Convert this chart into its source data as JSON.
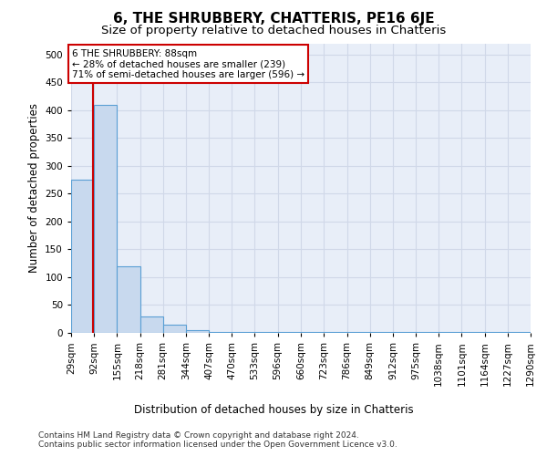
{
  "title": "6, THE SHRUBBERY, CHATTERIS, PE16 6JE",
  "subtitle": "Size of property relative to detached houses in Chatteris",
  "xlabel_bottom": "Distribution of detached houses by size in Chatteris",
  "ylabel": "Number of detached properties",
  "bin_edges": [
    29,
    92,
    155,
    218,
    281,
    344,
    407,
    470,
    533,
    596,
    660,
    723,
    786,
    849,
    912,
    975,
    1038,
    1101,
    1164,
    1227,
    1290
  ],
  "bar_heights": [
    275,
    410,
    120,
    30,
    15,
    5,
    2,
    2,
    1,
    1,
    1,
    1,
    1,
    1,
    1,
    1,
    1,
    1,
    1,
    1
  ],
  "bar_color": "#c8d9ee",
  "bar_edge_color": "#5a9fd4",
  "property_size": 88,
  "red_line_color": "#cc0000",
  "annotation_line1": "6 THE SHRUBBERY: 88sqm",
  "annotation_line2": "← 28% of detached houses are smaller (239)",
  "annotation_line3": "71% of semi-detached houses are larger (596) →",
  "annotation_box_color": "#ffffff",
  "annotation_border_color": "#cc0000",
  "ylim": [
    0,
    520
  ],
  "yticks": [
    0,
    50,
    100,
    150,
    200,
    250,
    300,
    350,
    400,
    450,
    500
  ],
  "footer_text": "Contains HM Land Registry data © Crown copyright and database right 2024.\nContains public sector information licensed under the Open Government Licence v3.0.",
  "bg_color": "#e8eef8",
  "grid_color": "#d0d8e8",
  "title_fontsize": 11,
  "subtitle_fontsize": 9.5,
  "axis_label_fontsize": 8.5,
  "tick_fontsize": 7.5,
  "annotation_fontsize": 7.5,
  "footer_fontsize": 6.5
}
